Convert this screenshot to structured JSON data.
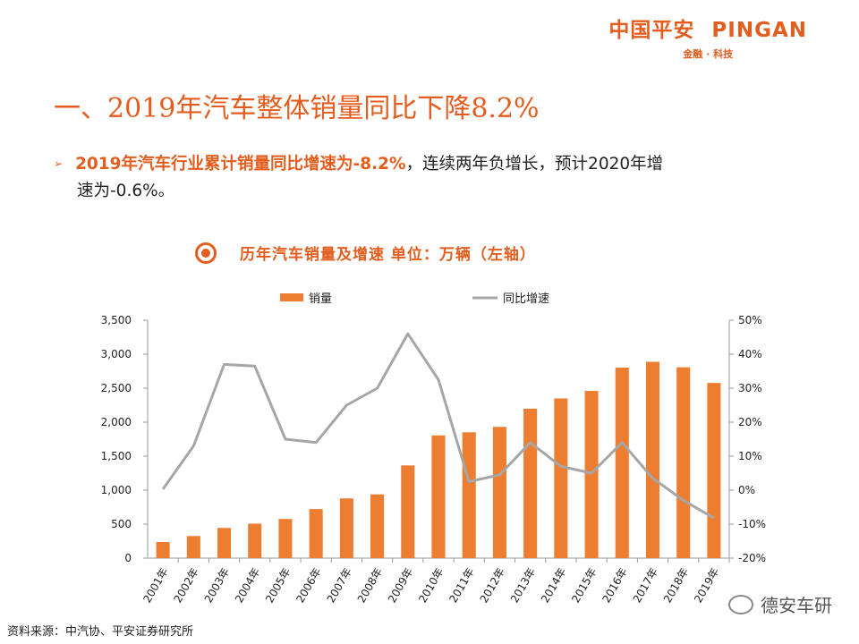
{
  "brand": {
    "name_cn": "中国平安",
    "name_en": "PINGAN",
    "tagline": "金融 · 科技",
    "color": "#e35d1f"
  },
  "title": "一、2019年汽车整体销量同比下降8.2%",
  "bullet": {
    "highlight": "2019年汽车行业累计销量同比增速为-8.2%",
    "rest_line1": "，连续两年负增长，预计2020年增",
    "rest_line2": "速为-0.6%。"
  },
  "chart_title": "历年汽车销量及增速 单位：万辆（左轴）",
  "source": "资料来源：中汽协、平安证券研究所",
  "watermark": "德安车研",
  "chart_data": {
    "type": "bar+line",
    "categories": [
      "2001年",
      "2002年",
      "2003年",
      "2004年",
      "2005年",
      "2006年",
      "2007年",
      "2008年",
      "2009年",
      "2010年",
      "2011年",
      "2012年",
      "2013年",
      "2014年",
      "2015年",
      "2016年",
      "2017年",
      "2018年",
      "2019年"
    ],
    "series": [
      {
        "name": "销量",
        "type": "bar",
        "axis": "left",
        "color": "#ed7d31",
        "values": [
          237,
          325,
          444,
          507,
          576,
          722,
          879,
          938,
          1364,
          1806,
          1851,
          1931,
          2198,
          2349,
          2460,
          2803,
          2888,
          2808,
          2577
        ]
      },
      {
        "name": "同比增速",
        "type": "line",
        "axis": "right",
        "color": "#a6a6a6",
        "values": [
          0.3,
          13,
          37,
          36.5,
          15,
          14,
          25,
          30,
          46,
          32.5,
          2.5,
          4.5,
          14,
          7,
          5,
          14,
          3.5,
          -3,
          -8.2
        ]
      }
    ],
    "left_axis": {
      "min": 0,
      "max": 3500,
      "ticks": [
        "0",
        "500",
        "1,000",
        "1,500",
        "2,000",
        "2,500",
        "3,000",
        "3,500"
      ]
    },
    "right_axis": {
      "min": -20,
      "max": 50,
      "ticks": [
        "-20%",
        "-10%",
        "0%",
        "10%",
        "20%",
        "30%",
        "40%",
        "50%"
      ]
    },
    "legend": [
      "销量",
      "同比增速"
    ]
  }
}
